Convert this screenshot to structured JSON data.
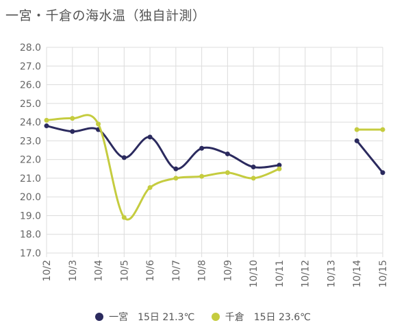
{
  "title": "一宮・千倉の海水温（独自計測）",
  "chart_data": {
    "type": "line",
    "title": "一宮・千倉の海水温（独自計測）",
    "categories": [
      "10/2",
      "10/3",
      "10/4",
      "10/5",
      "10/6",
      "10/7",
      "10/8",
      "10/9",
      "10/10",
      "10/11",
      "10/12",
      "10/13",
      "10/14",
      "10/15"
    ],
    "ylim": [
      17.0,
      28.0
    ],
    "yticks": [
      "17.0",
      "18.0",
      "19.0",
      "20.0",
      "21.0",
      "22.0",
      "23.0",
      "24.0",
      "25.0",
      "26.0",
      "27.0",
      "28.0"
    ],
    "grid": true,
    "legend_position": "bottom",
    "series": [
      {
        "name": "一宮",
        "legend_text": "一宮　15日 21.3℃",
        "color": "#2b2a5e",
        "values": [
          23.8,
          23.5,
          23.6,
          22.1,
          23.2,
          21.5,
          22.6,
          22.3,
          21.6,
          21.7,
          null,
          null,
          23.0,
          21.3
        ]
      },
      {
        "name": "千倉",
        "legend_text": "千倉　15日 23.6℃",
        "color": "#c5cc3f",
        "values": [
          24.1,
          24.2,
          23.9,
          18.9,
          20.5,
          21.0,
          21.1,
          21.3,
          21.0,
          21.5,
          null,
          null,
          23.6,
          23.6
        ]
      }
    ]
  }
}
